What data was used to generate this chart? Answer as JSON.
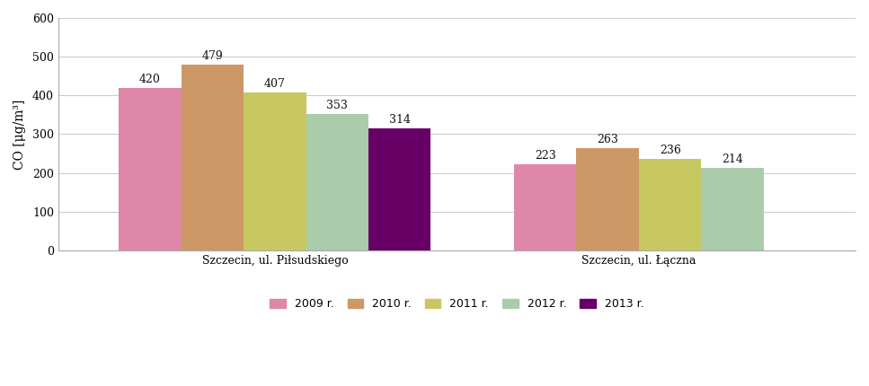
{
  "groups": [
    "Szczecin, ul. Piłsudskiego",
    "Szczecin, ul. Łączna"
  ],
  "years": [
    "2009 r.",
    "2010 r.",
    "2011 r.",
    "2012 r.",
    "2013 r."
  ],
  "values": [
    [
      420,
      479,
      407,
      353,
      314
    ],
    [
      223,
      263,
      236,
      214,
      null
    ]
  ],
  "colors": [
    "#df87a8",
    "#cc9966",
    "#c8c860",
    "#aaccaa",
    "#660066"
  ],
  "ylabel": "CO [μg/m³]",
  "ylim": [
    0,
    600
  ],
  "yticks": [
    0,
    100,
    200,
    300,
    400,
    500,
    600
  ],
  "bar_width": 0.072,
  "group_centers": [
    0.3,
    0.72
  ],
  "figsize": [
    9.67,
    4.3
  ],
  "dpi": 100,
  "background_color": "#ffffff",
  "label_fontsize": 9,
  "axis_label_fontsize": 10,
  "tick_fontsize": 9,
  "legend_fontsize": 9
}
